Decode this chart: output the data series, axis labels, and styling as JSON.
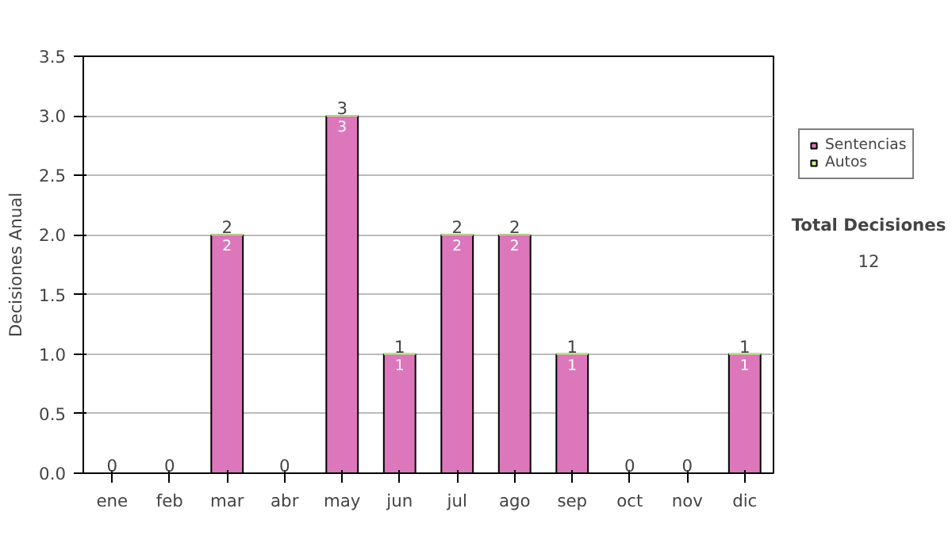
{
  "chart_data": {
    "type": "bar",
    "stacked": true,
    "ylabel": "Decisiones Anual",
    "categories": [
      "ene",
      "feb",
      "mar",
      "abr",
      "may",
      "jun",
      "jul",
      "ago",
      "sep",
      "oct",
      "nov",
      "dic"
    ],
    "series": [
      {
        "name": "Sentencias",
        "color": "#dd77bb",
        "values": [
          0,
          0,
          2,
          0,
          3,
          1,
          2,
          2,
          1,
          0,
          0,
          1
        ],
        "value_labels": [
          null,
          null,
          "2",
          null,
          "3",
          "1",
          "2",
          "2",
          "1",
          null,
          null,
          "1"
        ]
      },
      {
        "name": "Autos",
        "color": "#ccee99",
        "values": [
          0,
          0,
          0,
          0,
          0,
          0,
          0,
          0,
          0,
          0,
          0,
          0
        ]
      }
    ],
    "totals": [
      "0",
      "0",
      "2",
      "0",
      "3",
      "1",
      "2",
      "2",
      "1",
      "0",
      "0",
      "1"
    ],
    "ylim": [
      0,
      3.5
    ],
    "yticks": [
      {
        "value": 0,
        "label": "0.0"
      },
      {
        "value": 0.5,
        "label": "0.5"
      },
      {
        "value": 1,
        "label": "1.0"
      },
      {
        "value": 1.5,
        "label": "1.5"
      },
      {
        "value": 2,
        "label": "2.0"
      },
      {
        "value": 2.5,
        "label": "2.5"
      },
      {
        "value": 3,
        "label": "3.0"
      },
      {
        "value": 3.5,
        "label": "3.5"
      }
    ],
    "grid": "y",
    "legend": "right",
    "annotations": [
      "Total Decisiones",
      "12"
    ]
  }
}
